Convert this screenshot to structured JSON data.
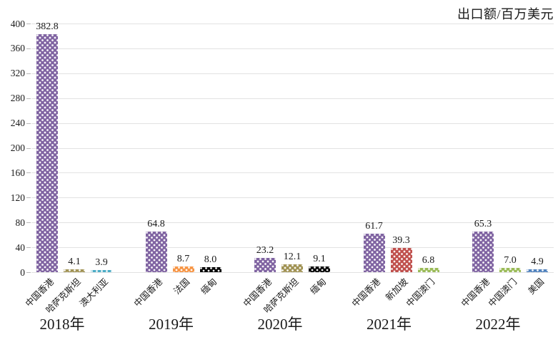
{
  "chart_data": {
    "type": "bar",
    "title": "出口额/百万美元",
    "ylabel": "出口额/百万美元",
    "ylim": [
      0,
      400
    ],
    "yticks": [
      0,
      40,
      80,
      120,
      160,
      200,
      240,
      280,
      320,
      360,
      400
    ],
    "grid": true,
    "legend_position": "none",
    "bar_pattern": "white-dots",
    "value_label_decimals": 1,
    "gridline_color": "#e2e2e2",
    "groups": [
      {
        "year": "2018年",
        "bars": [
          {
            "label": "中国香港",
            "value": 382.8,
            "color": "#8064A2"
          },
          {
            "label": "哈萨克斯坦",
            "value": 4.1,
            "color": "#A19355"
          },
          {
            "label": "澳大利亚",
            "value": 3.9,
            "color": "#4BACC6"
          }
        ]
      },
      {
        "year": "2019年",
        "bars": [
          {
            "label": "中国香港",
            "value": 64.8,
            "color": "#8064A2"
          },
          {
            "label": "法国",
            "value": 8.7,
            "color": "#F79646"
          },
          {
            "label": "缅甸",
            "value": 8.0,
            "color": "#000000"
          }
        ]
      },
      {
        "year": "2020年",
        "bars": [
          {
            "label": "中国香港",
            "value": 23.2,
            "color": "#8064A2"
          },
          {
            "label": "哈萨克斯坦",
            "value": 12.1,
            "color": "#A19355"
          },
          {
            "label": "缅甸",
            "value": 9.1,
            "color": "#000000"
          }
        ]
      },
      {
        "year": "2021年",
        "bars": [
          {
            "label": "中国香港",
            "value": 61.7,
            "color": "#8064A2"
          },
          {
            "label": "新加坡",
            "value": 39.3,
            "color": "#C0504D"
          },
          {
            "label": "中国澳门",
            "value": 6.8,
            "color": "#9BBB59"
          }
        ]
      },
      {
        "year": "2022年",
        "bars": [
          {
            "label": "中国香港",
            "value": 65.3,
            "color": "#8064A2"
          },
          {
            "label": "中国澳门",
            "value": 7.0,
            "color": "#9BBB59"
          },
          {
            "label": "美国",
            "value": 4.9,
            "color": "#4F81BD"
          }
        ]
      }
    ]
  }
}
